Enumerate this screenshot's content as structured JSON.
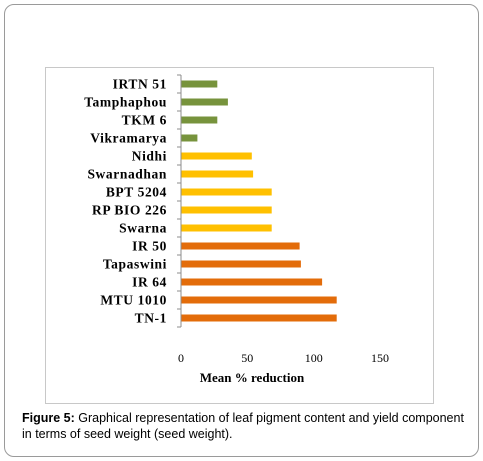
{
  "caption": {
    "label": "Figure 5:",
    "text": " Graphical representation of leaf pigment content and yield component in terms of seed weight (seed weight)."
  },
  "chart_data": {
    "type": "bar",
    "orientation": "horizontal",
    "categories": [
      "IRTN 51",
      "Tamphaphou",
      "TKM 6",
      "Vikramarya",
      "Nidhi",
      "Swarnadhan",
      "BPT 5204",
      "RP BIO 226",
      "Swarna",
      "IR 50",
      "Tapaswini",
      "IR 64",
      "MTU 1010",
      "TN-1"
    ],
    "values": [
      27,
      35,
      27,
      12,
      53,
      54,
      68,
      68,
      68,
      89,
      90,
      106,
      117,
      117
    ],
    "bar_colors": [
      "#77933c",
      "#77933c",
      "#77933c",
      "#77933c",
      "#ffc000",
      "#ffc000",
      "#ffc000",
      "#ffc000",
      "#ffc000",
      "#e36c0a",
      "#e36c0a",
      "#e36c0a",
      "#e36c0a",
      "#e36c0a"
    ],
    "xlabel": "Mean  % reduction",
    "ylabel": "",
    "title": "",
    "xlim": [
      0,
      150
    ],
    "xticks": [
      0,
      50,
      100,
      150
    ],
    "grid": false,
    "legend": "none"
  }
}
